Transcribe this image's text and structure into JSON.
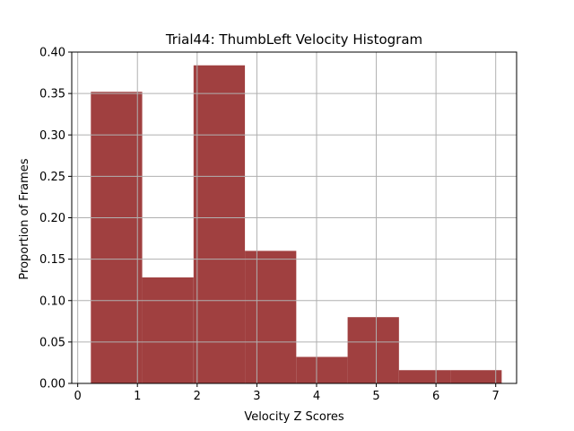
{
  "chart_data": {
    "type": "bar",
    "title": "Trial44: ThumbLeft Velocity Histogram",
    "xlabel": "Velocity Z Scores",
    "ylabel": "Proportion of Frames",
    "xlim": [
      -0.1,
      7.35
    ],
    "ylim": [
      0,
      0.4
    ],
    "grid": true,
    "colors": {
      "bar": "#a04040",
      "grid": "#b0b0b0",
      "axis": "#000000"
    },
    "x_ticks": [
      0,
      1,
      2,
      3,
      4,
      5,
      6,
      7
    ],
    "x_tick_labels": [
      "0",
      "1",
      "2",
      "3",
      "4",
      "5",
      "6",
      "7"
    ],
    "y_ticks": [
      0.0,
      0.05,
      0.1,
      0.15,
      0.2,
      0.25,
      0.3,
      0.35,
      0.4
    ],
    "y_tick_labels": [
      "0.00",
      "0.05",
      "0.10",
      "0.15",
      "0.20",
      "0.25",
      "0.30",
      "0.35",
      "0.40"
    ],
    "bins": [
      {
        "x0": 0.22,
        "x1": 1.08,
        "value": 0.352
      },
      {
        "x0": 1.08,
        "x1": 1.94,
        "value": 0.128
      },
      {
        "x0": 1.94,
        "x1": 2.8,
        "value": 0.384
      },
      {
        "x0": 2.8,
        "x1": 3.66,
        "value": 0.16
      },
      {
        "x0": 3.66,
        "x1": 4.52,
        "value": 0.032
      },
      {
        "x0": 4.52,
        "x1": 5.38,
        "value": 0.08
      },
      {
        "x0": 5.38,
        "x1": 6.24,
        "value": 0.016
      },
      {
        "x0": 6.24,
        "x1": 7.1,
        "value": 0.016
      }
    ]
  }
}
